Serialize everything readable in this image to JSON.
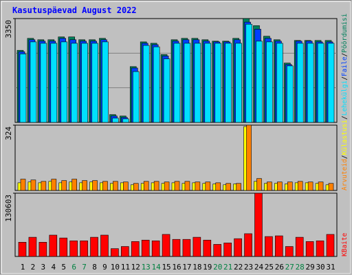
{
  "chart_data": {
    "type": "bar",
    "title": "Kasutuspäevad August 2022",
    "legend_separator": "/",
    "categories": [
      "1",
      "2",
      "3",
      "4",
      "5",
      "6",
      "7",
      "8",
      "9",
      "10",
      "11",
      "12",
      "13",
      "14",
      "15",
      "16",
      "17",
      "18",
      "19",
      "20",
      "21",
      "22",
      "23",
      "24",
      "25",
      "26",
      "27",
      "28",
      "29",
      "30",
      "31"
    ],
    "category_colors": [
      "#000000",
      "#000000",
      "#000000",
      "#000000",
      "#000000",
      "#008040",
      "#008040",
      "#000000",
      "#000000",
      "#000000",
      "#000000",
      "#000000",
      "#008040",
      "#008040",
      "#000000",
      "#000000",
      "#000000",
      "#000000",
      "#000000",
      "#008040",
      "#008040",
      "#000000",
      "#000000",
      "#000000",
      "#000000",
      "#000000",
      "#008040",
      "#008040",
      "#000000",
      "#000000",
      "#000000"
    ],
    "panels": [
      {
        "ylim": [
          0,
          3350
        ],
        "yticks": [
          3350
        ],
        "series": [
          {
            "name": "Pöördumisi",
            "color": "#00805c",
            "values": [
              2325,
              2712,
              2667,
              2667,
              2758,
              2758,
              2667,
              2667,
              2712,
              251,
              205,
              1800,
              2598,
              2553,
              2188,
              2667,
              2712,
              2712,
              2667,
              2621,
              2621,
              2712,
              3350,
              3122,
              2780,
              2667,
              1914,
              2644,
              2644,
              2644,
              2644
            ]
          },
          {
            "name": "Faile",
            "color": "#0040ff",
            "values": [
              2280,
              2667,
              2621,
              2621,
              2712,
              2667,
              2621,
              2621,
              2667,
              205,
              160,
              1754,
              2553,
              2507,
              2142,
              2621,
              2667,
              2667,
              2621,
              2598,
              2598,
              2667,
              3236,
              3008,
              2712,
              2621,
              1868,
              2621,
              2621,
              2598,
              2598
            ]
          },
          {
            "name": "Lehekülgi",
            "color": "#00e0ff",
            "values": [
              2210,
              2598,
              2553,
              2553,
              2598,
              2553,
              2553,
              2553,
              2598,
              137,
              114,
              1640,
              2484,
              2438,
              2051,
              2553,
              2553,
              2553,
              2553,
              2553,
              2553,
              2553,
              3168,
              2621,
              2598,
              2553,
              1823,
              2553,
              2553,
              2553,
              2553
            ]
          }
        ]
      },
      {
        "ylim": [
          0,
          324
        ],
        "yticks": [
          324
        ],
        "series": [
          {
            "name": "Külastusi",
            "color": "#ffff00",
            "values": [
              38,
              42,
              38,
              45,
              38,
              42,
              38,
              42,
              38,
              35,
              38,
              28,
              35,
              38,
              35,
              38,
              35,
              38,
              35,
              32,
              28,
              32,
              317,
              45,
              35,
              35,
              32,
              38,
              38,
              35,
              28
            ]
          },
          {
            "name": "Arvuteid",
            "color": "#ff8000",
            "values": [
              56,
              52,
              45,
              56,
              49,
              56,
              49,
              49,
              45,
              45,
              42,
              35,
              45,
              45,
              42,
              45,
              45,
              42,
              42,
              38,
              35,
              35,
              324,
              59,
              42,
              42,
              42,
              45,
              42,
              42,
              35
            ]
          }
        ]
      },
      {
        "ylim": [
          0,
          130603
        ],
        "yticks": [
          130603
        ],
        "series": [
          {
            "name": "KBaite",
            "color": "#ff0000",
            "values": [
              29349,
              39621,
              29349,
              44023,
              38153,
              32284,
              32284,
              39621,
              44023,
              16142,
              20545,
              30817,
              33752,
              32284,
              45491,
              35218,
              35218,
              39621,
              33752,
              24947,
              27881,
              36686,
              46958,
              130603,
              41088,
              42555,
              20545,
              39621,
              30817,
              32284,
              45491
            ]
          }
        ]
      }
    ]
  }
}
